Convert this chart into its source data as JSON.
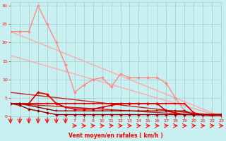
{
  "background_color": "#c8f0f0",
  "grid_color": "#a0c8d0",
  "text_color": "#ff0000",
  "xlabel": "Vent moyen/en rafales ( km/h )",
  "xlim": [
    0,
    23
  ],
  "ylim": [
    0,
    31
  ],
  "yticks": [
    0,
    5,
    10,
    15,
    20,
    25,
    30
  ],
  "xticks": [
    0,
    1,
    2,
    3,
    4,
    5,
    6,
    7,
    8,
    9,
    10,
    11,
    12,
    13,
    14,
    15,
    16,
    17,
    18,
    19,
    20,
    21,
    22,
    23
  ],
  "lines": [
    {
      "x": [
        0,
        23
      ],
      "y": [
        16.5,
        0
      ],
      "color": "#ffaaaa",
      "lw": 1.0,
      "marker": null,
      "ls": "-"
    },
    {
      "x": [
        0,
        23
      ],
      "y": [
        23,
        0
      ],
      "color": "#ffaaaa",
      "lw": 1.0,
      "marker": null,
      "ls": "-"
    },
    {
      "x": [
        0,
        1,
        2,
        3,
        4,
        5,
        6,
        7,
        8,
        9,
        10,
        11,
        12,
        13,
        14,
        15,
        16,
        17,
        18,
        19,
        20,
        21,
        22,
        23
      ],
      "y": [
        23,
        23,
        23,
        30,
        25,
        20,
        14,
        6.5,
        8.5,
        10,
        10.5,
        8,
        11.5,
        10.5,
        10.5,
        10.5,
        10.5,
        9,
        5,
        1.5,
        1,
        0.5,
        0.5,
        0.5
      ],
      "color": "#ff8888",
      "lw": 1.0,
      "marker": "D",
      "markersize": 2.0,
      "ls": "-"
    },
    {
      "x": [
        0,
        23
      ],
      "y": [
        3.5,
        0
      ],
      "color": "#cc2222",
      "lw": 1.0,
      "marker": null,
      "ls": "-"
    },
    {
      "x": [
        0,
        23
      ],
      "y": [
        6.5,
        0
      ],
      "color": "#cc2222",
      "lw": 1.0,
      "marker": null,
      "ls": "-"
    },
    {
      "x": [
        0,
        1,
        2,
        3,
        4,
        5,
        6,
        7,
        8,
        9,
        10,
        11,
        12,
        13,
        14,
        15,
        16,
        17,
        18,
        19,
        20,
        21,
        22,
        23
      ],
      "y": [
        3.5,
        3.5,
        3.5,
        3.5,
        3.5,
        3.5,
        3.5,
        3.5,
        3.5,
        3.5,
        3.5,
        3.5,
        3.5,
        3.5,
        3.5,
        3.5,
        3.5,
        3.5,
        3.5,
        3.5,
        1.0,
        0.5,
        0.5,
        0.5
      ],
      "color": "#dd0000",
      "lw": 1.2,
      "marker": "s",
      "markersize": 2.0,
      "ls": "-"
    },
    {
      "x": [
        0,
        1,
        2,
        3,
        4,
        5,
        6,
        7,
        8,
        9,
        10,
        11,
        12,
        13,
        14,
        15,
        16,
        17,
        18,
        19,
        20,
        21,
        22,
        23
      ],
      "y": [
        3.5,
        3.5,
        3.5,
        6.5,
        6.0,
        3.5,
        2.5,
        2.0,
        2.0,
        2.0,
        2.5,
        3.0,
        3.5,
        3.5,
        3.5,
        3.5,
        3.5,
        1.5,
        1.0,
        0.5,
        0.5,
        0.5,
        0.5,
        0.5
      ],
      "color": "#dd0000",
      "lw": 1.2,
      "marker": "D",
      "markersize": 2.0,
      "ls": "-"
    },
    {
      "x": [
        0,
        1,
        2,
        3,
        4,
        5,
        6,
        7,
        8,
        9,
        10,
        11,
        12,
        13,
        14,
        15,
        16,
        17,
        18,
        19,
        20,
        21,
        22,
        23
      ],
      "y": [
        3.5,
        3.0,
        2.0,
        1.5,
        1.0,
        0.5,
        0.5,
        0.5,
        0.5,
        0.5,
        0.5,
        0.5,
        0.5,
        0.5,
        0.5,
        0.5,
        0.5,
        0.5,
        0.5,
        0.5,
        0.5,
        0.5,
        0.5,
        0.5
      ],
      "color": "#990000",
      "lw": 1.0,
      "marker": "D",
      "markersize": 2.0,
      "ls": "-"
    },
    {
      "x": [
        0,
        1,
        2,
        3,
        4,
        5,
        6,
        7,
        8,
        9,
        10,
        11,
        12,
        13,
        14,
        15,
        16,
        17,
        18,
        19,
        20,
        21,
        22,
        23
      ],
      "y": [
        3.5,
        3.5,
        3.0,
        2.5,
        2.0,
        1.5,
        1.5,
        1.5,
        1.5,
        1.5,
        1.5,
        1.5,
        1.5,
        1.5,
        1.5,
        1.5,
        1.5,
        1.5,
        1.5,
        1.5,
        0.5,
        0.5,
        0.5,
        0.5
      ],
      "color": "#990000",
      "lw": 1.0,
      "marker": "s",
      "markersize": 2.0,
      "ls": "-"
    }
  ]
}
